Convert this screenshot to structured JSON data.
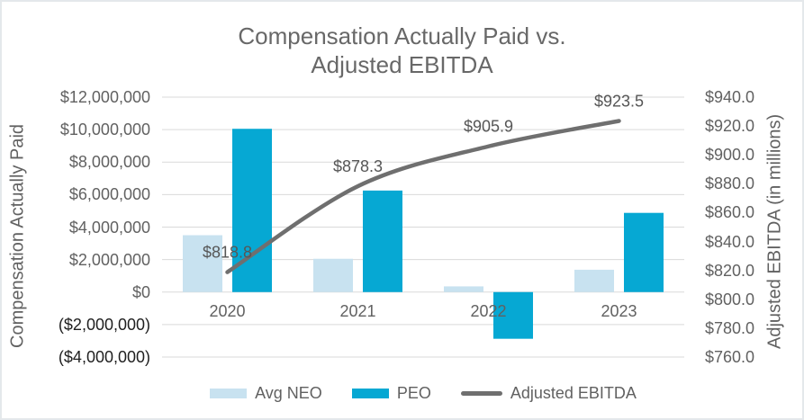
{
  "chart": {
    "title_line1": "Compensation Actually Paid vs.",
    "title_line2": "Adjusted EBITDA",
    "left_axis": {
      "title": "Compensation Actually Paid",
      "ticks": [
        "$12,000,000",
        "$10,000,000",
        "$8,000,000",
        "$6,000,000",
        "$4,000,000",
        "$2,000,000",
        "$0",
        "($2,000,000)",
        "($4,000,000)"
      ]
    },
    "right_axis": {
      "title": "Adjusted EBITDA (in millions)",
      "ticks": [
        "$940.0",
        "$920.0",
        "$900.0",
        "$880.0",
        "$860.0",
        "$840.0",
        "$820.0",
        "$800.0",
        "$780.0",
        "$760.0"
      ]
    },
    "colors": {
      "avg_neo": "#C8E2F0",
      "peo": "#06A8D3",
      "ebitda_line": "#6F6F6F",
      "gridline": "#D9D9D9",
      "text": "#616161",
      "negative_tick_text": "#1F1F1F"
    }
  },
  "chart_data": {
    "type": "bar",
    "subtype": "combo-bar-line-dual-axis",
    "title": "Compensation Actually Paid vs. Adjusted EBITDA",
    "categories": [
      "2020",
      "2021",
      "2022",
      "2023"
    ],
    "series": [
      {
        "name": "Avg NEO",
        "type": "bar",
        "axis": "left",
        "values": [
          3500000,
          2050000,
          350000,
          1375000
        ]
      },
      {
        "name": "PEO",
        "type": "bar",
        "axis": "left",
        "values": [
          10050000,
          6250000,
          -2875000,
          4875000
        ]
      },
      {
        "name": "Adjusted EBITDA",
        "type": "line",
        "axis": "right",
        "values": [
          818.8,
          878.3,
          905.9,
          923.5
        ],
        "labels": [
          "$818.8",
          "$878.3",
          "$905.9",
          "$923.5"
        ]
      }
    ],
    "left_ylabel": "Compensation Actually Paid",
    "right_ylabel": "Adjusted EBITDA (in millions)",
    "left_ylim": [
      -4000000,
      12000000
    ],
    "left_tick_step": 2000000,
    "right_ylim": [
      760,
      940
    ],
    "right_tick_step": 20,
    "grid": true,
    "legend_position": "bottom"
  }
}
